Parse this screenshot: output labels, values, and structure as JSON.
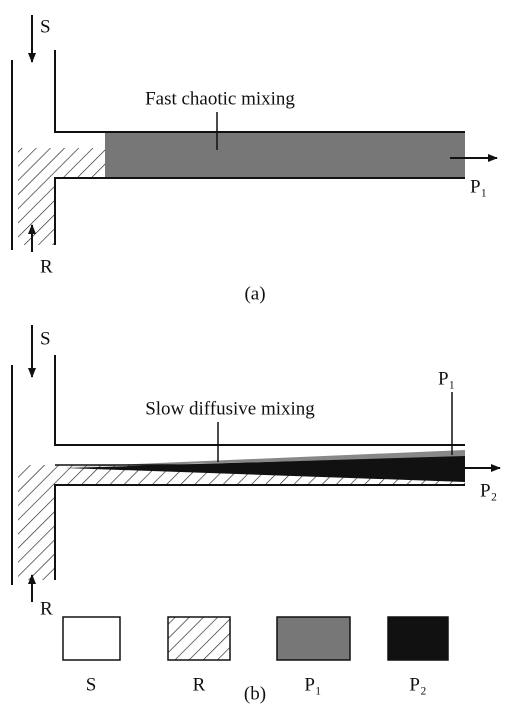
{
  "panel_a": {
    "source_label": "S",
    "reagent_label": "R",
    "mixing_label": "Fast chaotic mixing",
    "product_label": "P₁",
    "caption": "(a)"
  },
  "panel_b": {
    "source_label": "S",
    "reagent_label": "R",
    "mixing_label": "Slow diffusive mixing",
    "product1_label": "P₁",
    "product2_label": "P₂",
    "caption": "(b)"
  },
  "legend": [
    {
      "label": "S"
    },
    {
      "label": "R"
    },
    {
      "label": "P₁"
    },
    {
      "label": "P₂"
    }
  ]
}
